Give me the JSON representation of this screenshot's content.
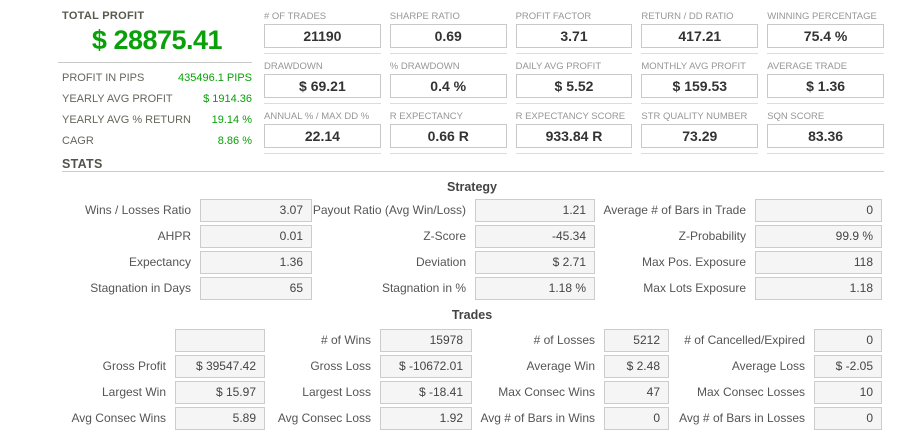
{
  "colors": {
    "profit_green": "#0aa00a"
  },
  "overview": {
    "total_profit_label": "TOTAL PROFIT",
    "total_profit_value": "$ 28875.41",
    "rows": [
      {
        "label": "PROFIT IN PIPS",
        "value": "435496.1 PIPS"
      },
      {
        "label": "YEARLY AVG PROFIT",
        "value": "$ 1914.36"
      },
      {
        "label": "YEARLY AVG % RETURN",
        "value": "19.14 %"
      },
      {
        "label": "CAGR",
        "value": "8.86 %"
      }
    ],
    "stats_heading": "STATS"
  },
  "metrics": {
    "cells": [
      {
        "label": "# OF TRADES",
        "value": "21190"
      },
      {
        "label": "SHARPE RATIO",
        "value": "0.69"
      },
      {
        "label": "PROFIT FACTOR",
        "value": "3.71"
      },
      {
        "label": "RETURN / DD RATIO",
        "value": "417.21"
      },
      {
        "label": "WINNING PERCENTAGE",
        "value": "75.4 %"
      },
      {
        "label": "DRAWDOWN",
        "value": "$ 69.21"
      },
      {
        "label": "% DRAWDOWN",
        "value": "0.4 %"
      },
      {
        "label": "DAILY AVG PROFIT",
        "value": "$ 5.52"
      },
      {
        "label": "MONTHLY AVG PROFIT",
        "value": "$ 159.53"
      },
      {
        "label": "AVERAGE TRADE",
        "value": "$ 1.36"
      },
      {
        "label": "ANNUAL % / MAX DD %",
        "value": "22.14"
      },
      {
        "label": "R EXPECTANCY",
        "value": "0.66 R"
      },
      {
        "label": "R EXPECTANCY SCORE",
        "value": "933.84 R"
      },
      {
        "label": "STR QUALITY NUMBER",
        "value": "73.29"
      },
      {
        "label": "SQN SCORE",
        "value": "83.36"
      }
    ]
  },
  "strategy": {
    "heading": "Strategy",
    "rows": [
      [
        {
          "label": "Wins / Losses Ratio",
          "value": "3.07"
        },
        {
          "label": "Payout Ratio (Avg Win/Loss)",
          "value": "1.21"
        },
        {
          "label": "Average # of Bars in Trade",
          "value": "0"
        }
      ],
      [
        {
          "label": "AHPR",
          "value": "0.01"
        },
        {
          "label": "Z-Score",
          "value": "-45.34"
        },
        {
          "label": "Z-Probability",
          "value": "99.9 %"
        }
      ],
      [
        {
          "label": "Expectancy",
          "value": "1.36"
        },
        {
          "label": "Deviation",
          "value": "$ 2.71"
        },
        {
          "label": "Max Pos. Exposure",
          "value": "118"
        }
      ],
      [
        {
          "label": "Stagnation in Days",
          "value": "65"
        },
        {
          "label": "Stagnation in %",
          "value": "1.18 %"
        },
        {
          "label": "Max Lots Exposure",
          "value": "1.18"
        }
      ]
    ]
  },
  "trades": {
    "heading": "Trades",
    "rows": [
      [
        {
          "label": "",
          "value": ""
        },
        {
          "label": "# of Wins",
          "value": "15978"
        },
        {
          "label": "# of Losses",
          "value": "5212"
        },
        {
          "label": "# of Cancelled/Expired",
          "value": "0"
        }
      ],
      [
        {
          "label": "Gross Profit",
          "value": "$ 39547.42"
        },
        {
          "label": "Gross Loss",
          "value": "$ -10672.01"
        },
        {
          "label": "Average Win",
          "value": "$ 2.48"
        },
        {
          "label": "Average Loss",
          "value": "$ -2.05"
        }
      ],
      [
        {
          "label": "Largest Win",
          "value": "$ 15.97"
        },
        {
          "label": "Largest Loss",
          "value": "$ -18.41"
        },
        {
          "label": "Max Consec Wins",
          "value": "47"
        },
        {
          "label": "Max Consec Losses",
          "value": "10"
        }
      ],
      [
        {
          "label": "Avg Consec Wins",
          "value": "5.89"
        },
        {
          "label": "Avg Consec Loss",
          "value": "1.92"
        },
        {
          "label": "Avg # of Bars in Wins",
          "value": "0"
        },
        {
          "label": "Avg # of Bars in Losses",
          "value": "0"
        }
      ]
    ]
  }
}
